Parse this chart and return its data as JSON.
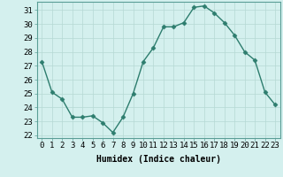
{
  "x": [
    0,
    1,
    2,
    3,
    4,
    5,
    6,
    7,
    8,
    9,
    10,
    11,
    12,
    13,
    14,
    15,
    16,
    17,
    18,
    19,
    20,
    21,
    22,
    23
  ],
  "y": [
    27.3,
    25.1,
    24.6,
    23.3,
    23.3,
    23.4,
    22.9,
    22.2,
    23.3,
    25.0,
    27.3,
    28.3,
    29.8,
    29.8,
    30.1,
    31.2,
    31.3,
    30.8,
    30.1,
    29.2,
    28.0,
    27.4,
    25.1,
    24.2
  ],
  "line_color": "#2d7d6e",
  "marker": "D",
  "marker_size": 2.5,
  "bg_color": "#d4f0ee",
  "grid_color": "#b5d8d4",
  "xlabel": "Humidex (Indice chaleur)",
  "ylim_min": 21.8,
  "ylim_max": 31.6,
  "xlim_min": -0.5,
  "xlim_max": 23.5,
  "yticks": [
    22,
    23,
    24,
    25,
    26,
    27,
    28,
    29,
    30,
    31
  ],
  "xticks": [
    0,
    1,
    2,
    3,
    4,
    5,
    6,
    7,
    8,
    9,
    10,
    11,
    12,
    13,
    14,
    15,
    16,
    17,
    18,
    19,
    20,
    21,
    22,
    23
  ],
  "xlabel_fontsize": 7,
  "tick_fontsize": 6.5,
  "line_width": 1.0,
  "spine_color": "#5a9e96"
}
